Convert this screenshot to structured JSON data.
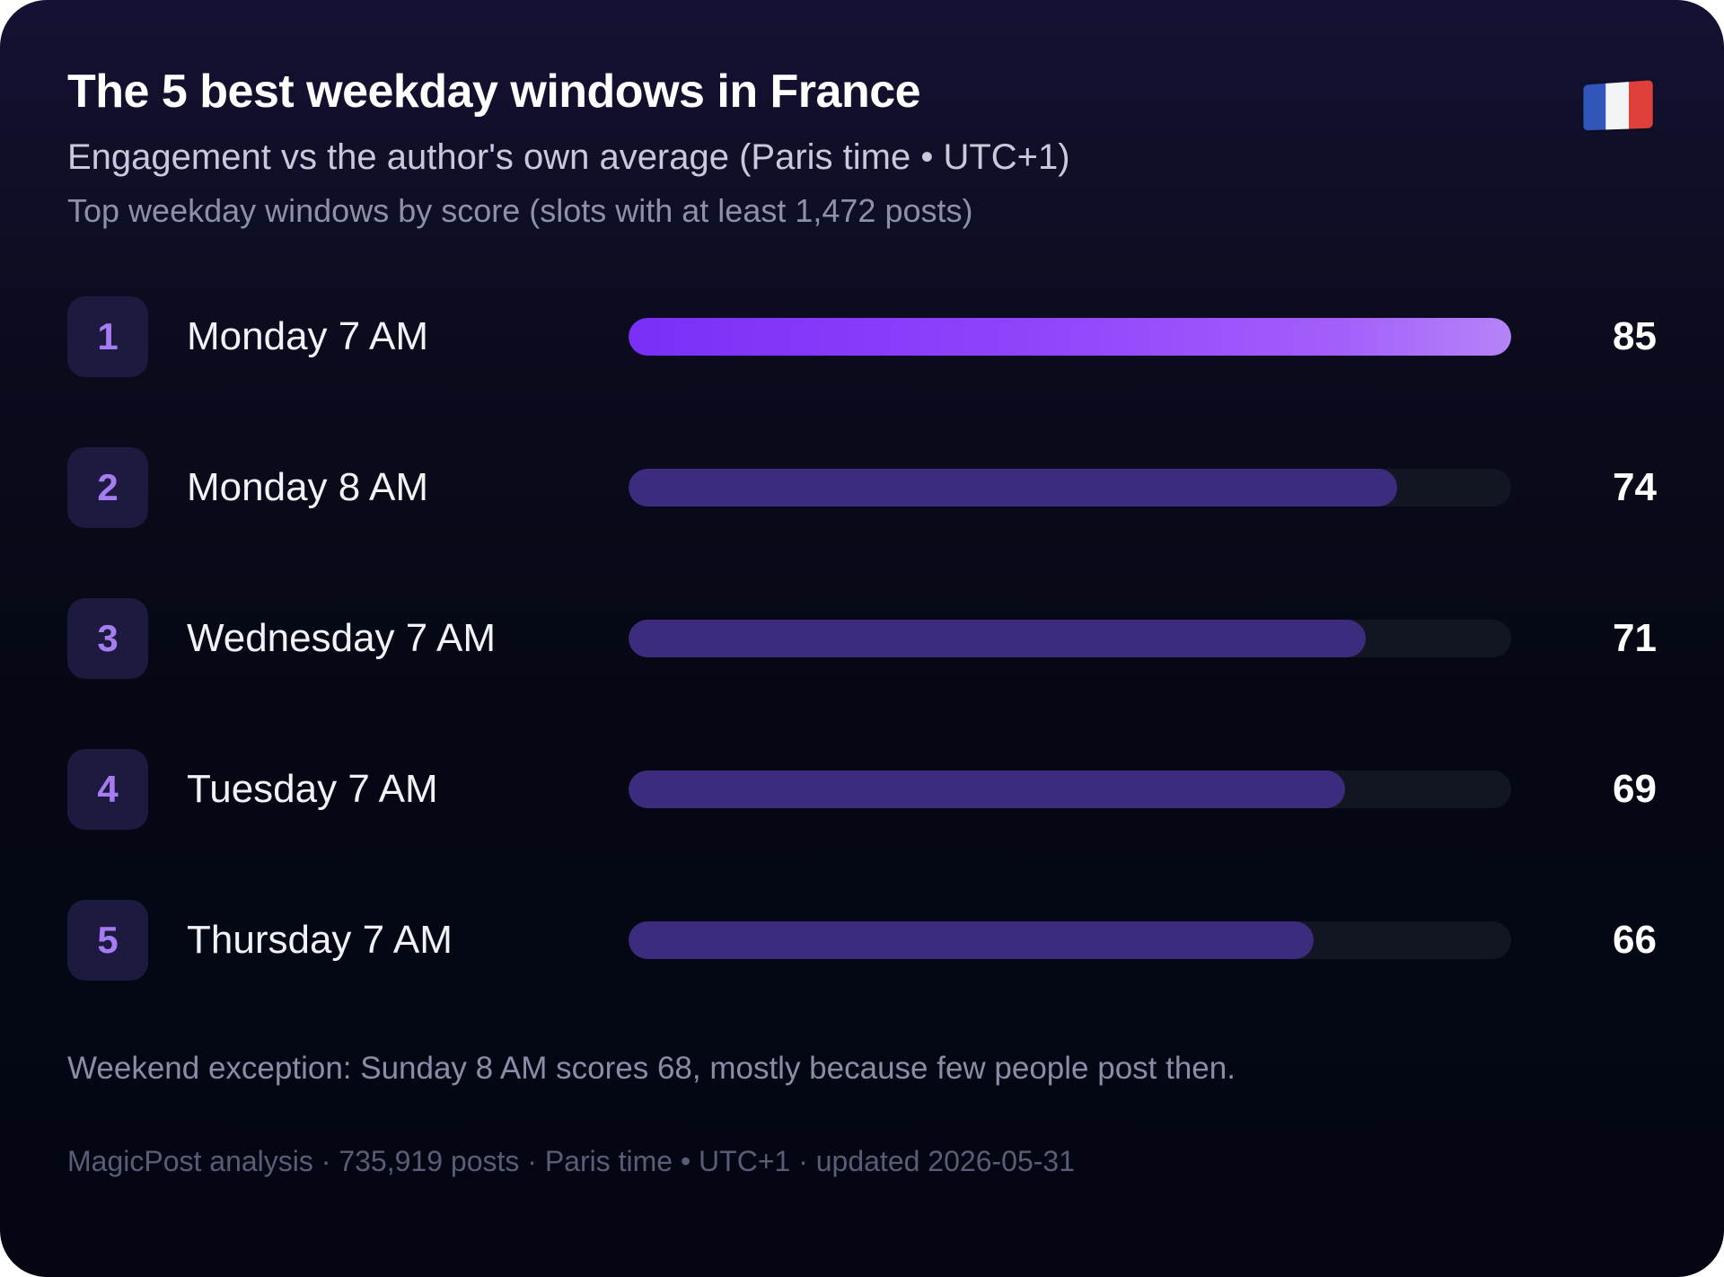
{
  "header": {
    "title": "The 5 best weekday windows in France",
    "subtitle": "Engagement vs the author's own average (Paris time • UTC+1)",
    "subtitle2": "Top weekday windows by score (slots with at least 1,472 posts)",
    "flag_icon": "france-flag-icon"
  },
  "chart_data": {
    "type": "bar",
    "orientation": "horizontal",
    "title": "The 5 best weekday windows in France",
    "xlim": [
      0,
      85
    ],
    "categories": [
      "Monday 7 AM",
      "Monday 8 AM",
      "Wednesday 7 AM",
      "Tuesday 7 AM",
      "Thursday 7 AM"
    ],
    "ranks": [
      "1",
      "2",
      "3",
      "4",
      "5"
    ],
    "values": [
      85,
      74,
      71,
      69,
      66
    ],
    "colors": {
      "top_bar_start": "#7a2ff7",
      "top_bar_end": "#b584f7",
      "bar": "#3d2c7e",
      "track": "#121623",
      "rank_text": "#a57cf2"
    }
  },
  "note": "Weekend exception: Sunday 8 AM scores 68, mostly because few people post then.",
  "footer": "MagicPost analysis · 735,919 posts · Paris time • UTC+1 · updated 2026-05-31"
}
